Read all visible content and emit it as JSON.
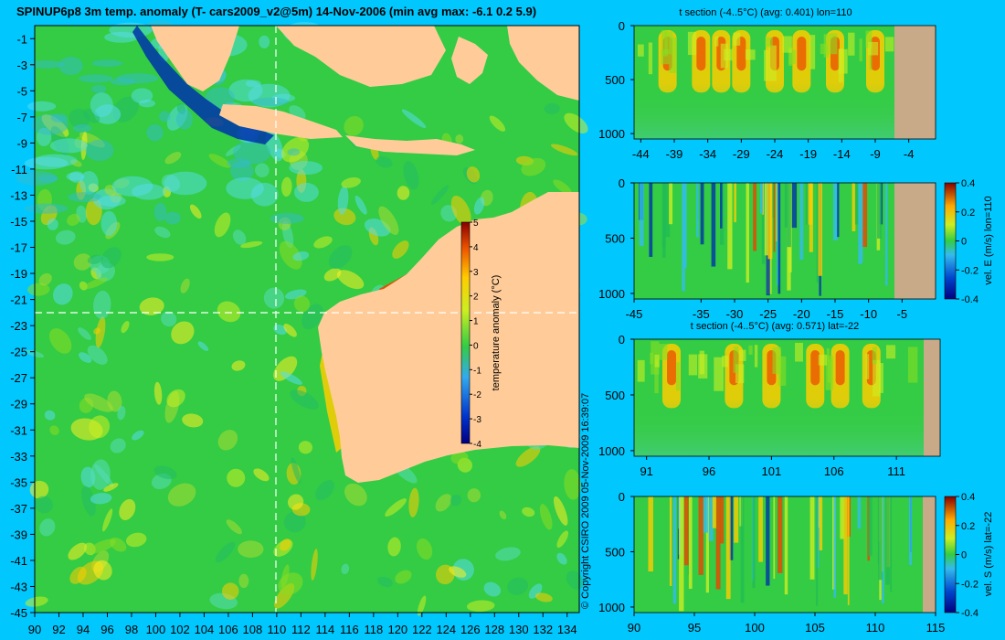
{
  "title": "SPINUP6p8 3m temp. anomaly (T- cars2009_v2@5m) 14-Nov-2006 (min avg max: -6.1 0.2 5.9)",
  "copyright": "© Copyright CSIRO 2009  05-Nov-2009 16:39:07",
  "colors": {
    "background": "#00c8ff",
    "land": "#ffcc99",
    "section_land": "#c8aa88",
    "ocean_base": "#33cc44",
    "warm": "#ffcc00",
    "hot": "#ee4400",
    "cold": "#0033aa",
    "cool": "#55ddee"
  },
  "chart_data": [
    {
      "type": "heatmap",
      "id": "map",
      "title": "SPINUP6p8 3m temp. anomaly (T- cars2009_v2@5m) 14-Nov-2006 (min avg max: -6.1 0.2 5.9)",
      "xlim": [
        90,
        135
      ],
      "ylim": [
        -45,
        0
      ],
      "xticks": [
        90,
        92,
        94,
        96,
        98,
        100,
        102,
        104,
        106,
        108,
        110,
        112,
        114,
        116,
        118,
        120,
        122,
        124,
        126,
        128,
        130,
        132,
        134
      ],
      "yticks": [
        -1,
        -3,
        -5,
        -7,
        -9,
        -11,
        -13,
        -15,
        -17,
        -19,
        -21,
        -23,
        -25,
        -27,
        -29,
        -31,
        -33,
        -35,
        -37,
        -39,
        -41,
        -43,
        -45
      ],
      "section_lon": 110,
      "section_lat": -22,
      "colorbar": {
        "label": "temperature anomaly (°C)",
        "range": [
          -4,
          5
        ],
        "ticks": [
          5,
          4,
          3,
          2,
          1,
          0,
          -1,
          -2,
          -3,
          -4
        ]
      }
    },
    {
      "type": "heatmap",
      "id": "tsec-lon",
      "title": "t section (-4..5°C) (avg: 0.401) lon=110",
      "xlim": [
        -45,
        0
      ],
      "xticks": [
        -44,
        -39,
        -34,
        -29,
        -24,
        -19,
        -14,
        -9,
        -4
      ],
      "ylim": [
        1050,
        0
      ],
      "yticks": [
        0,
        500,
        1000
      ],
      "warm_x": [
        -40,
        -35,
        -32,
        -29,
        -24,
        -20,
        -15,
        -9
      ]
    },
    {
      "type": "heatmap",
      "id": "vel-e",
      "title": "",
      "xlim": [
        -45,
        0
      ],
      "xticks": [
        -45,
        -35,
        -30,
        -25,
        -20,
        -15,
        -10,
        -5
      ],
      "ylim": [
        1050,
        0
      ],
      "yticks": [
        0,
        500,
        1000
      ],
      "colorbar": {
        "label": "vel. E (m/s) lon=110",
        "range": [
          -0.4,
          0.4
        ],
        "ticks": [
          0.4,
          0.2,
          0,
          -0.2,
          -0.4
        ]
      }
    },
    {
      "type": "heatmap",
      "id": "tsec-lat",
      "title": "t section (-4..5°C) (avg: 0.571) lat=-22",
      "xlim": [
        90,
        114.5
      ],
      "xticks": [
        91,
        96,
        101,
        106,
        111
      ],
      "ylim": [
        1050,
        0
      ],
      "yticks": [
        0,
        500,
        1000
      ],
      "warm_x": [
        93,
        98,
        101,
        104.5,
        106.5,
        109
      ]
    },
    {
      "type": "heatmap",
      "id": "vel-s",
      "title": "",
      "xlim": [
        90,
        115
      ],
      "xticks": [
        90,
        95,
        100,
        105,
        110,
        115
      ],
      "ylim": [
        1050,
        0
      ],
      "yticks": [
        0,
        500,
        1000
      ],
      "colorbar": {
        "label": "vel. S (m/s) lat=-22",
        "range": [
          -0.4,
          0.4
        ],
        "ticks": [
          0.4,
          0.2,
          0,
          -0.2,
          -0.4
        ]
      }
    }
  ]
}
